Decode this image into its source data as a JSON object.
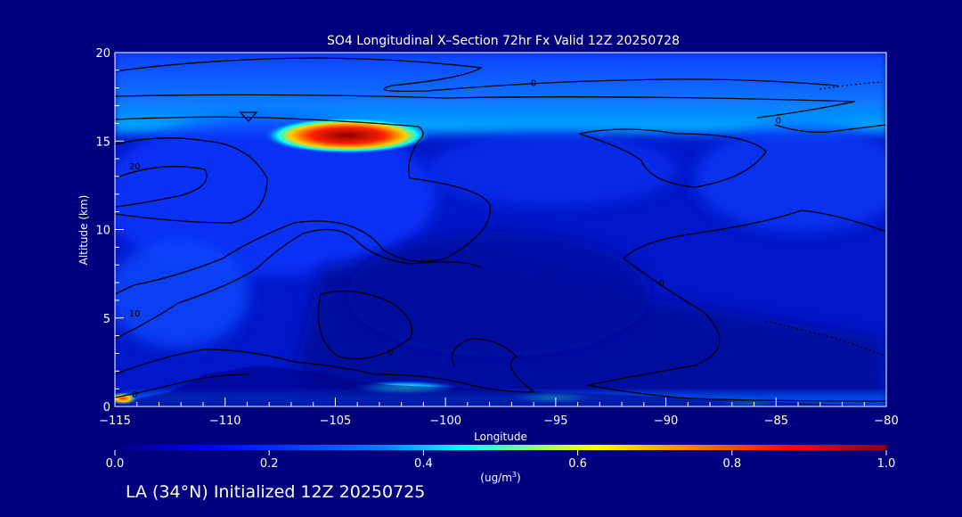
{
  "chart_data": {
    "type": "heatmap",
    "title": "SO4 Longitudinal X–Section 72hr  Fx Valid 12Z 20250728",
    "xlabel": "Longitude",
    "ylabel": "Altitude (km)",
    "xlim": [
      -115,
      -80
    ],
    "ylim": [
      0,
      20
    ],
    "xticks": [
      -115,
      -110,
      -105,
      -100,
      -95,
      -90,
      -85,
      -80
    ],
    "xtick_labels": [
      "−115",
      "−110",
      "−105",
      "−100",
      "−95",
      "−90",
      "−85",
      "−80"
    ],
    "yticks": [
      0,
      5,
      10,
      15,
      20
    ],
    "ytick_labels": [
      "0",
      "5",
      "10",
      "15",
      "20"
    ],
    "colorbar": {
      "min": 0.0,
      "max": 1.0,
      "ticks": [
        0.0,
        0.2,
        0.4,
        0.6,
        0.8,
        1.0
      ],
      "tick_labels": [
        "0.0",
        "0.2",
        "0.4",
        "0.6",
        "0.8",
        "1.0"
      ],
      "unit_label": "(ug/m",
      "unit_sup": "3",
      "unit_close": ")"
    },
    "colors": {
      "background": "#00007f",
      "low": "#00007f",
      "high": "#8b0000"
    },
    "concentration_features": [
      {
        "lon_range": [
          -115,
          -80
        ],
        "alt_range": [
          15.5,
          19.2
        ],
        "value": 0.12
      },
      {
        "lon_range": [
          -107,
          -101
        ],
        "alt_range": [
          14.8,
          16.0
        ],
        "value": 0.95
      },
      {
        "lon_range": [
          -102,
          -98
        ],
        "alt_range": [
          0.5,
          1.5
        ],
        "value": 0.45
      },
      {
        "lon_range": [
          -115,
          -114.2
        ],
        "alt_range": [
          0.2,
          0.8
        ],
        "value": 0.9
      },
      {
        "lon_range": [
          -115,
          -105
        ],
        "alt_range": [
          0,
          3
        ],
        "value": 0.2
      }
    ],
    "contour_labels": [
      {
        "text": "0",
        "lon": -96,
        "alt": 18.3
      },
      {
        "text": "0",
        "lon": -84.9,
        "alt": 16.2
      },
      {
        "text": "20",
        "lon": -114.1,
        "alt": 13.6
      },
      {
        "text": "10",
        "lon": -114.1,
        "alt": 5.3
      },
      {
        "text": "0",
        "lon": -114.1,
        "alt": 0.7
      },
      {
        "text": "0",
        "lon": -102.5,
        "alt": 3.1
      },
      {
        "text": "0",
        "lon": -90.2,
        "alt": 7.0
      }
    ]
  },
  "footer": "LA (34°N) Initialized 12Z 20250725"
}
